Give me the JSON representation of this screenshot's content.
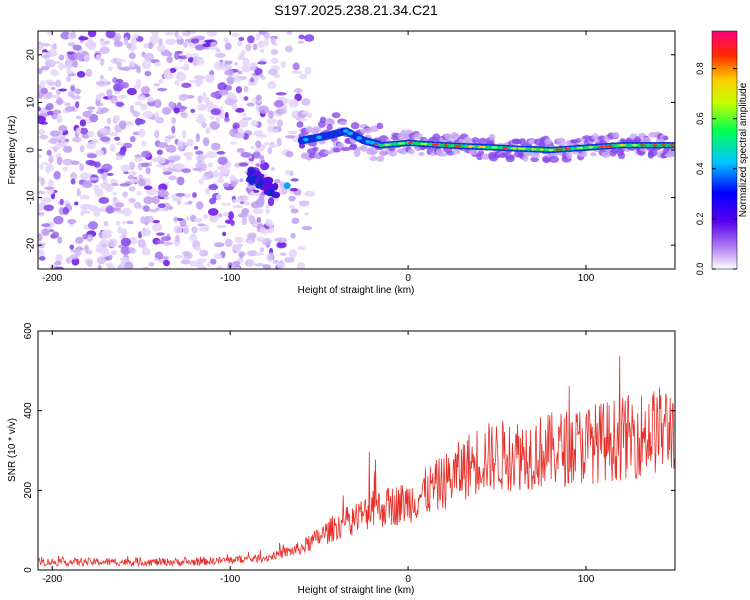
{
  "title": "S197.2025.238.21.34.C21",
  "chart_data": [
    {
      "type": "heatmap",
      "xlabel": "Height of straight line (km)",
      "ylabel": "Frequency (Hz)",
      "xlim": [
        -208,
        150
      ],
      "ylim": [
        -25,
        25
      ],
      "xticks": [
        -200,
        -100,
        0,
        100
      ],
      "yticks": [
        -20,
        -10,
        0,
        10,
        20
      ],
      "colorbar": {
        "label": "Normalized spectral amplitude",
        "range": [
          0,
          0.95
        ],
        "ticks": [
          0,
          0.2,
          0.4,
          0.6,
          0.8
        ],
        "tick_labels": [
          "0.0",
          "0.2",
          "0.4",
          "0.6",
          "0.8"
        ]
      },
      "features": {
        "noise_region_x": [
          -208,
          -55
        ],
        "descending_branch": [
          [
            -90,
            -5
          ],
          [
            -80,
            -7
          ],
          [
            -72,
            -9
          ]
        ],
        "ridge": [
          [
            -60,
            2
          ],
          [
            -45,
            3
          ],
          [
            -35,
            4
          ],
          [
            -25,
            2
          ],
          [
            -15,
            1
          ],
          [
            0,
            1.5
          ],
          [
            20,
            1
          ],
          [
            50,
            0.5
          ],
          [
            80,
            0
          ],
          [
            100,
            0.5
          ],
          [
            120,
            1
          ],
          [
            150,
            1
          ]
        ]
      }
    },
    {
      "type": "line",
      "xlabel": "Height of straight line (km)",
      "ylabel": "SNR (10 * v/v)",
      "xlim": [
        -208,
        150
      ],
      "ylim": [
        0,
        600
      ],
      "xticks": [
        -200,
        -100,
        0,
        100
      ],
      "yticks": [
        0,
        200,
        400,
        600
      ],
      "series": [
        {
          "name": "SNR",
          "color": "#e8302a",
          "envelope": [
            [
              -208,
              20
            ],
            [
              -120,
              20
            ],
            [
              -80,
              30
            ],
            [
              -60,
              55
            ],
            [
              -40,
              110
            ],
            [
              -20,
              150
            ],
            [
              0,
              170
            ],
            [
              20,
              220
            ],
            [
              40,
              280
            ],
            [
              60,
              290
            ],
            [
              80,
              300
            ],
            [
              100,
              315
            ],
            [
              120,
              330
            ],
            [
              140,
              350
            ],
            [
              150,
              360
            ]
          ]
        }
      ]
    }
  ]
}
